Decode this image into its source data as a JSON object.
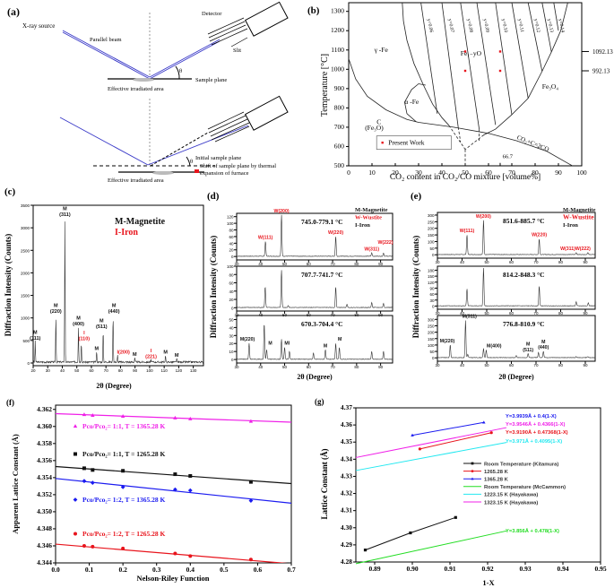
{
  "colors": {
    "red": "#e8141c",
    "black": "#111111",
    "blue": "#1b1bf0",
    "magenta": "#f020e8",
    "green": "#22dd22",
    "cyan": "#22e8f0",
    "beam": "#3a3ac8"
  },
  "panel_a": {
    "letter": "(a)",
    "xray_source": "X-ray source",
    "parallel_beam": "Parallel beam",
    "detector": "Detector",
    "slit": "Slit",
    "theta": "θ",
    "sample_plane": "Sample plane",
    "effective_area": "Effective irradiated area",
    "theta2": "θ",
    "initial_plane": "Initial sample plane",
    "shift_line1": "Shift of sample plane by thermal",
    "shift_line2": "expansion of furnace",
    "effective_area2": "Effective irradiated area"
  },
  "panel_b": {
    "letter": "(b)",
    "xlabel": "CO₂ content in CO₂/CO mixture [volume%]",
    "ylabel": "Temperature [°C]",
    "xlim": [
      0,
      100
    ],
    "ylim": [
      500,
      1300
    ],
    "xticks": [
      0,
      10,
      20,
      30,
      40,
      50,
      60,
      70,
      80,
      90,
      100
    ],
    "yticks": [
      500,
      600,
      700,
      800,
      900,
      1000,
      1100,
      1200,
      1300
    ],
    "right_labels": [
      "1092.13",
      "992.13"
    ],
    "right_values": [
      1092.13,
      992.13
    ],
    "iso_labels": [
      "y=0.06",
      "y=0.07",
      "y=0.08",
      "y=0.09",
      "y=0.10",
      "y=0.11",
      "y=0.12",
      "y=0.13",
      "y=0.14"
    ],
    "regions": {
      "gamma_fe": "γ -Fe",
      "wustite": "Fe₁₋yO",
      "alpha_fe": "α -Fe",
      "magnetite": "Fe₃O₄",
      "c_line1": "C",
      "c_line2": "(Fe₃O)",
      "reaction": "CO₂+C=2CO",
      "mark_667": "66.7"
    },
    "legend": "Present Work",
    "present_work": [
      [
        50,
        1092.13
      ],
      [
        50,
        992.13
      ],
      [
        65,
        1092.13
      ],
      [
        65,
        992.13
      ]
    ]
  },
  "chart_data": [
    {
      "id": "c",
      "letter": "(c)",
      "type": "line",
      "xlabel": "2θ (Degree)",
      "ylabel": "Diffraction Intensity (Counts)",
      "xlim": [
        20,
        137
      ],
      "ylim": [
        0,
        3500
      ],
      "xticks": [
        20,
        30,
        40,
        50,
        60,
        70,
        80,
        90,
        100,
        110,
        120,
        130
      ],
      "yticks": [
        0,
        500,
        1000,
        1500,
        2000,
        2500,
        3000,
        3500
      ],
      "legend": [
        {
          "text": "M-Magnetite",
          "color": "#111111"
        },
        {
          "text": "I-Iron",
          "color": "#e8141c"
        }
      ],
      "peaks": [
        [
          21.4,
          460
        ],
        [
          35.6,
          1050
        ],
        [
          41.8,
          3200
        ],
        [
          51.1,
          780
        ],
        [
          53.1,
          450
        ],
        [
          63.6,
          230
        ],
        [
          68.1,
          720
        ],
        [
          74.9,
          1050
        ],
        [
          78,
          150
        ],
        [
          89.8,
          100
        ],
        [
          101,
          50
        ],
        [
          110.9,
          150
        ],
        [
          118.6,
          80
        ]
      ],
      "labels": [
        {
          "x": 21.4,
          "h": 460,
          "lines": [
            "M",
            "(111)"
          ],
          "color": "#111111"
        },
        {
          "x": 35.6,
          "h": 1050,
          "lines": [
            "M",
            "(220)"
          ],
          "color": "#111111"
        },
        {
          "x": 41.8,
          "h": 3200,
          "lines": [
            "M",
            "(311)"
          ],
          "color": "#111111"
        },
        {
          "x": 51.1,
          "h": 780,
          "lines": [
            "M",
            "(400)"
          ],
          "color": "#111111"
        },
        {
          "x": 55,
          "h": 450,
          "lines": [
            "I",
            "(110)"
          ],
          "color": "#e8141c"
        },
        {
          "x": 63.6,
          "h": 230,
          "lines": [
            "M"
          ],
          "color": "#111111"
        },
        {
          "x": 67,
          "h": 720,
          "lines": [
            "M",
            "(511)"
          ],
          "color": "#111111"
        },
        {
          "x": 75.5,
          "h": 1050,
          "lines": [
            "M",
            "(440)"
          ],
          "color": "#111111"
        },
        {
          "x": 82,
          "h": 150,
          "lines": [
            "I(200)"
          ],
          "color": "#e8141c"
        },
        {
          "x": 89.8,
          "h": 100,
          "lines": [
            "M"
          ],
          "color": "#111111"
        },
        {
          "x": 101,
          "h": 50,
          "lines": [
            "I",
            "(221)"
          ],
          "color": "#e8141c"
        },
        {
          "x": 110.9,
          "h": 150,
          "lines": [
            "M"
          ],
          "color": "#111111"
        },
        {
          "x": 118.6,
          "h": 80,
          "lines": [
            "M"
          ],
          "color": "#111111"
        }
      ]
    },
    {
      "id": "d",
      "letter": "(d)",
      "type": "line",
      "xlabel": "2θ (Degree)",
      "ylabel": "Diffraction Intensity (Counts)",
      "xlim": [
        30,
        95
      ],
      "xticks": [
        30,
        40,
        50,
        60,
        70,
        80,
        90
      ],
      "legend": [
        {
          "text": "M-Magnetite",
          "color": "#111111"
        },
        {
          "text": "W-Wustite",
          "color": "#e8141c"
        },
        {
          "text": "I-Iron",
          "color": "#111111"
        }
      ],
      "subplots": [
        {
          "temp": "745.0-779.1 °C",
          "ylim": [
            0,
            130
          ],
          "yticks": [
            0,
            20,
            40,
            60,
            80,
            100,
            120
          ],
          "peaks": [
            [
              42,
              45
            ],
            [
              48.7,
              125
            ],
            [
              71.3,
              60
            ],
            [
              86.3,
              10
            ],
            [
              91.2,
              10
            ]
          ],
          "labels": [
            {
              "x": 42,
              "h": 45,
              "lines": [
                "W(111)"
              ],
              "color": "#e8141c"
            },
            {
              "x": 48.7,
              "h": 125,
              "lines": [
                "W(200)"
              ],
              "color": "#e8141c"
            },
            {
              "x": 71.3,
              "h": 60,
              "lines": [
                "W(220)"
              ],
              "color": "#e8141c"
            },
            {
              "x": 86.3,
              "h": 10,
              "lines": [
                "W(311)"
              ],
              "color": "#e8141c"
            },
            {
              "x": 92,
              "h": 30,
              "lines": [
                "W(222)"
              ],
              "color": "#e8141c"
            }
          ]
        },
        {
          "temp": "707.7-741.7 °C",
          "ylim": [
            0,
            100
          ],
          "yticks": [
            0,
            20,
            40,
            60,
            80,
            100
          ],
          "peaks": [
            [
              41.9,
              50
            ],
            [
              48.7,
              90
            ],
            [
              51.5,
              5
            ],
            [
              71.3,
              50
            ],
            [
              76,
              8
            ],
            [
              86.3,
              12
            ],
            [
              91.2,
              10
            ]
          ],
          "labels": []
        },
        {
          "temp": "670.3-704.4 °C",
          "ylim": [
            0,
            55
          ],
          "yticks": [
            0,
            10,
            20,
            30,
            40,
            50
          ],
          "peaks": [
            [
              35.2,
              20
            ],
            [
              41.5,
              45
            ],
            [
              42.5,
              12
            ],
            [
              48.7,
              25
            ],
            [
              50,
              15
            ],
            [
              52,
              10
            ],
            [
              62,
              8
            ],
            [
              67,
              12
            ],
            [
              71.3,
              20
            ],
            [
              72.8,
              15
            ],
            [
              86.3,
              10
            ],
            [
              91.2,
              10
            ]
          ],
          "labels": [
            {
              "x": 34.5,
              "h": 20,
              "lines": [
                "M(220)"
              ],
              "color": "#111111"
            },
            {
              "x": 44,
              "h": 15,
              "lines": [
                "M"
              ],
              "color": "#111111"
            },
            {
              "x": 51,
              "h": 15,
              "lines": [
                "MI"
              ],
              "color": "#111111"
            },
            {
              "x": 67,
              "h": 12,
              "lines": [
                "M"
              ],
              "color": "#111111"
            },
            {
              "x": 73,
              "h": 20,
              "lines": [
                "M"
              ],
              "color": "#111111"
            }
          ]
        }
      ]
    },
    {
      "id": "e",
      "letter": "(e)",
      "type": "line",
      "xlabel": "2θ (Degree)",
      "ylabel": "Diffraction Intensity (Counts)",
      "xlim": [
        30,
        94
      ],
      "xticks": [
        30,
        40,
        50,
        60,
        70,
        80,
        90
      ],
      "legend": [
        {
          "text": "M-Magnetite",
          "color": "#111111"
        },
        {
          "text": "W-Wustite",
          "color": "#e8141c"
        },
        {
          "text": "I-Iron",
          "color": "#111111"
        }
      ],
      "subplots": [
        {
          "temp": "851.6-885.7 °C",
          "ylim": [
            0,
            320
          ],
          "yticks": [
            0,
            50,
            100,
            150,
            200,
            250,
            300
          ],
          "peaks": [
            [
              42,
              150
            ],
            [
              48.7,
              260
            ],
            [
              71.3,
              120
            ],
            [
              86.3,
              15
            ],
            [
              91,
              15
            ]
          ],
          "labels": [
            {
              "x": 42,
              "h": 150,
              "lines": [
                "W(111)"
              ],
              "color": "#e8141c"
            },
            {
              "x": 48.7,
              "h": 260,
              "lines": [
                "W(200)"
              ],
              "color": "#e8141c"
            },
            {
              "x": 71.3,
              "h": 120,
              "lines": [
                "W(220)"
              ],
              "color": "#e8141c"
            },
            {
              "x": 86,
              "h": 15,
              "lines": [
                "W(311)W(222)"
              ],
              "color": "#e8141c"
            }
          ]
        },
        {
          "temp": "814.2-848.3 °C",
          "ylim": [
            0,
            200
          ],
          "yticks": [
            0,
            30,
            60,
            90,
            120,
            150,
            180
          ],
          "peaks": [
            [
              42,
              85
            ],
            [
              48.7,
              190
            ],
            [
              71.3,
              100
            ],
            [
              86.3,
              20
            ],
            [
              91.2,
              15
            ]
          ],
          "labels": []
        },
        {
          "temp": "776.8-810.9 °C",
          "ylim": [
            0,
            330
          ],
          "yticks": [
            0,
            50,
            100,
            150,
            200,
            250,
            300
          ],
          "peaks": [
            [
              35.2,
              100
            ],
            [
              41.4,
              290
            ],
            [
              42.3,
              25
            ],
            [
              48.7,
              70
            ],
            [
              49.8,
              60
            ],
            [
              62,
              15
            ],
            [
              66.8,
              30
            ],
            [
              71,
              40
            ],
            [
              73,
              50
            ],
            [
              86.3,
              8
            ],
            [
              91,
              8
            ]
          ],
          "labels": [
            {
              "x": 34,
              "h": 100,
              "lines": [
                "M(220)"
              ],
              "color": "#111111"
            },
            {
              "x": 43,
              "h": 290,
              "lines": [
                "M(311)"
              ],
              "color": "#111111"
            },
            {
              "x": 53,
              "h": 60,
              "lines": [
                "M(400)"
              ],
              "color": "#111111"
            },
            {
              "x": 66.8,
              "h": 30,
              "lines": [
                "M",
                "(511)"
              ],
              "color": "#111111"
            },
            {
              "x": 73,
              "h": 50,
              "lines": [
                "M",
                "(440)"
              ],
              "color": "#111111"
            }
          ]
        }
      ]
    },
    {
      "id": "f",
      "letter": "(f)",
      "type": "scatter",
      "xlabel": "Nelson-Riley Function",
      "ylabel": "Apparent Lattice Constant (Å)",
      "xlim": [
        0,
        0.7
      ],
      "ylim": [
        4.344,
        4.3625
      ],
      "xticks": [
        0.0,
        0.1,
        0.2,
        0.3,
        0.4,
        0.5,
        0.6,
        0.7
      ],
      "yticks": [
        4.344,
        4.346,
        4.348,
        4.35,
        4.352,
        4.354,
        4.356,
        4.358,
        4.36,
        4.362
      ],
      "x": [
        0.085,
        0.11,
        0.2,
        0.355,
        0.4,
        0.58
      ],
      "series": [
        {
          "name": "Pco/Pco₂= 1:1, T = 1365.28 K",
          "color": "#f020e8",
          "marker": "triangle",
          "values": [
            4.3614,
            4.3613,
            4.3612,
            4.361,
            4.3609,
            4.3606
          ],
          "fit": [
            4.3615,
            4.3605
          ]
        },
        {
          "name": "Pco/Pco₂= 1:1, T = 1265.28 K",
          "color": "#111111",
          "marker": "square",
          "values": [
            4.3551,
            4.3549,
            4.3548,
            4.3544,
            4.3542,
            4.3535
          ],
          "fit": [
            4.3553,
            4.3533
          ]
        },
        {
          "name": "Pco/Pco₂= 1:2, T = 1365.28 K",
          "color": "#1b1bf0",
          "marker": "diamond",
          "values": [
            4.3536,
            4.3534,
            4.3529,
            4.3526,
            4.3525,
            4.3513
          ],
          "fit": [
            4.3539,
            4.351
          ]
        },
        {
          "name": "Pco/Pco₂= 1:2,  T = 1265.28 K",
          "color": "#e8141c",
          "marker": "circle",
          "values": [
            4.346,
            4.3459,
            4.3457,
            4.3451,
            4.3448,
            4.3444
          ],
          "fit": [
            4.3462,
            4.3439
          ]
        }
      ]
    },
    {
      "id": "g",
      "letter": "(g)",
      "type": "line",
      "xlabel": "1-X",
      "ylabel": "Lattice Constant (Å)",
      "xlim": [
        0.885,
        0.95
      ],
      "ylim": [
        4.28,
        4.37
      ],
      "xticks": [
        0.89,
        0.9,
        0.91,
        0.92,
        0.93,
        0.94,
        0.95
      ],
      "yticks": [
        4.28,
        4.29,
        4.3,
        4.31,
        4.32,
        4.33,
        4.34,
        4.35,
        4.36,
        4.37
      ],
      "series": [
        {
          "name": "Room Temperature (Kitamura)",
          "color": "#111111",
          "marker": "square",
          "points": [
            [
              0.8875,
              4.287
            ],
            [
              0.8995,
              4.297
            ],
            [
              0.9115,
              4.306
            ]
          ]
        },
        {
          "name": "1265.28 K",
          "color": "#e8141c",
          "marker": "circle",
          "points": [
            [
              0.902,
              4.346
            ],
            [
              0.921,
              4.3555
            ]
          ],
          "equation": "Y=3.9190Å + 0.47368(1-X)"
        },
        {
          "name": "1365.28 K",
          "color": "#1b1bf0",
          "marker": "triangle",
          "points": [
            [
              0.9,
              4.354
            ],
            [
              0.919,
              4.3615
            ]
          ],
          "equation": "Y=3.9939Å + 0.4(1-X)"
        },
        {
          "name": "Room Temperature (McCammon)",
          "color": "#22dd22",
          "intercept": 3.856,
          "slope": 0.478,
          "range": [
            0.885,
            0.925
          ],
          "equation": "Y=3.856Å + 0.478(1-X)"
        },
        {
          "name": "1223.15 K (Hayakawa)",
          "color": "#22e8f0",
          "intercept": 3.971,
          "slope": 0.4095,
          "range": [
            0.885,
            0.925
          ],
          "equation": "Y=3.971Å + 0.4095(1-X)"
        },
        {
          "name": "1323.15 K (Hayakawa)",
          "color": "#f020e8",
          "intercept": 3.9546,
          "slope": 0.4366,
          "range": [
            0.885,
            0.925
          ],
          "equation": "Y=3.9546Å + 0.4366(1-X)"
        }
      ]
    }
  ]
}
